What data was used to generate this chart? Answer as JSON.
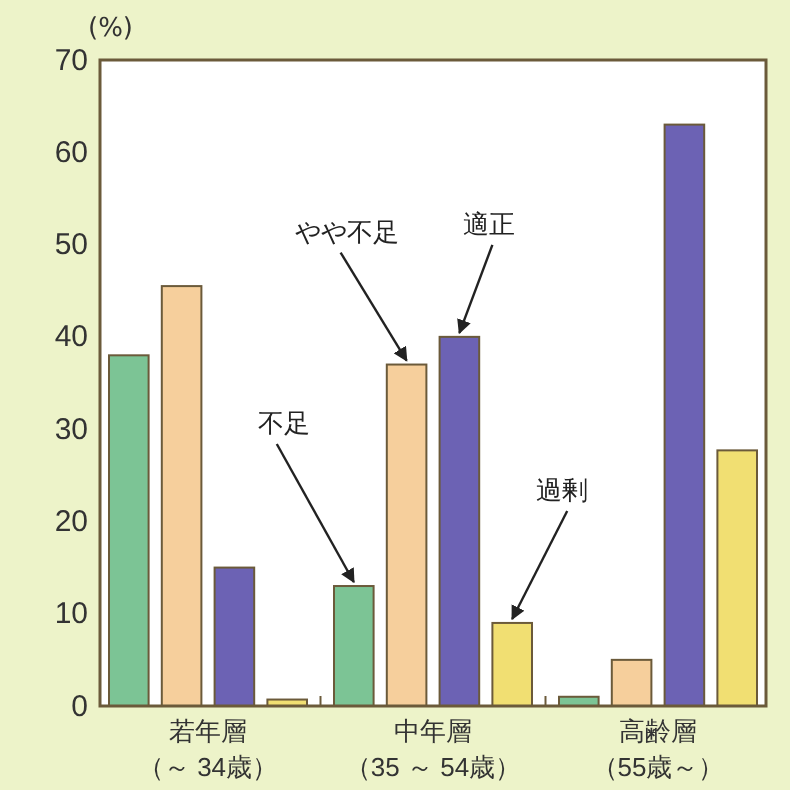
{
  "chart_data": {
    "type": "bar",
    "ylabel": "(%)",
    "categories": [
      "若年層（～ 34歳）",
      "中年層（35 ～ 54歳）",
      "高齢層（55歳～）"
    ],
    "series": [
      {
        "name": "不足",
        "color": "#7cc495",
        "values": [
          38,
          13,
          1
        ]
      },
      {
        "name": "やや不足",
        "color": "#f6cf9c",
        "values": [
          45.5,
          37,
          5
        ]
      },
      {
        "name": "適正",
        "color": "#6c62b4",
        "values": [
          15,
          40,
          63
        ]
      },
      {
        "name": "過剰",
        "color": "#f1df72",
        "values": [
          0.7,
          9,
          27.7
        ]
      }
    ],
    "ylim": [
      0,
      70
    ],
    "yticks": [
      0,
      10,
      20,
      30,
      40,
      50,
      60,
      70
    ],
    "grid": false
  }
}
